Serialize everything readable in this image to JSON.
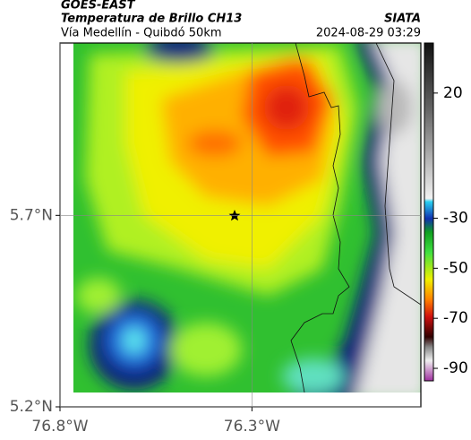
{
  "header": {
    "source": "GOES-EAST",
    "title": "Temperatura de Brillo CH13",
    "subtitle": "Vía Medellín - Quibdó 50km",
    "org": "SIATA",
    "datetime": "2024-08-29 03:29"
  },
  "map": {
    "xlim": [
      -76.8,
      -75.86
    ],
    "ylim": [
      5.2,
      6.15
    ],
    "xticks": [
      {
        "value": -76.8,
        "label": "76.8°W"
      },
      {
        "value": -76.3,
        "label": "76.3°W"
      }
    ],
    "yticks": [
      {
        "value": 5.7,
        "label": "5.7°N"
      },
      {
        "value": 5.2,
        "label": "5.2°N"
      }
    ],
    "grid": true
  },
  "colorbar": {
    "clim": [
      -95,
      40
    ],
    "ticks": [
      20,
      -30,
      -50,
      -70,
      -90
    ]
  }
}
